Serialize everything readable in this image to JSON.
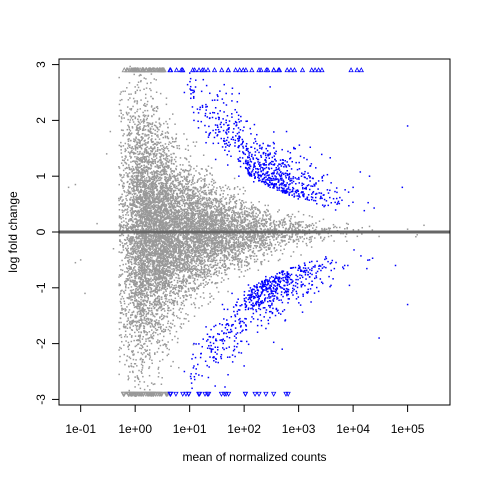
{
  "chart_data": {
    "type": "scatter",
    "title": "",
    "xlabel": "mean of normalized counts",
    "ylabel": "log fold change",
    "xscale": "log",
    "xlim": [
      0.04,
      600000
    ],
    "ylim": [
      -3.1,
      3.1
    ],
    "x_ticks": [
      {
        "value": 0.1,
        "label": "1e-01"
      },
      {
        "value": 1,
        "label": "1e+00"
      },
      {
        "value": 10,
        "label": "1e+01"
      },
      {
        "value": 100,
        "label": "1e+02"
      },
      {
        "value": 1000,
        "label": "1e+03"
      },
      {
        "value": 10000,
        "label": "1e+04"
      },
      {
        "value": 100000,
        "label": "1e+05"
      }
    ],
    "y_ticks": [
      {
        "value": -3,
        "label": "-3"
      },
      {
        "value": -2,
        "label": "-2"
      },
      {
        "value": -1,
        "label": "-1"
      },
      {
        "value": 0,
        "label": "0"
      },
      {
        "value": 1,
        "label": "1"
      },
      {
        "value": 2,
        "label": "2"
      },
      {
        "value": 3,
        "label": "3"
      }
    ],
    "reference_line": {
      "y": 0,
      "color": "#666666"
    },
    "grid": false,
    "legend": "none",
    "series": [
      {
        "color": "#999999",
        "marker": "point",
        "approx_count": 9000,
        "points": [
          [
            0.06,
            0.8
          ],
          [
            0.08,
            0.85
          ],
          [
            0.08,
            -0.55
          ],
          [
            0.1,
            -0.5
          ],
          [
            0.12,
            -1.1
          ],
          [
            0.2,
            0.15
          ],
          [
            0.3,
            1.4
          ],
          [
            0.35,
            1.8
          ],
          [
            0.4,
            -0.3
          ],
          [
            0.5,
            0.6
          ],
          [
            0.6,
            2.1
          ],
          [
            0.8,
            2.4
          ],
          [
            1,
            2.6
          ],
          [
            1.5,
            2.3
          ],
          [
            2,
            1.5
          ],
          [
            3,
            1.2
          ],
          [
            5,
            0.9
          ],
          [
            8,
            0.7
          ],
          [
            0.7,
            -2.3
          ],
          [
            1,
            -2.6
          ],
          [
            1.5,
            -2.0
          ],
          [
            2,
            -1.6
          ],
          [
            3,
            -1.3
          ],
          [
            5,
            -1.0
          ],
          [
            10,
            0.6
          ],
          [
            20,
            0.45
          ],
          [
            50,
            0.3
          ],
          [
            100,
            0.22
          ],
          [
            300,
            0.15
          ],
          [
            1000,
            0.1
          ],
          [
            5000,
            0.08
          ],
          [
            20000,
            0.1
          ],
          [
            100000,
            0.05
          ],
          [
            200000,
            0.12
          ],
          [
            10,
            -0.6
          ],
          [
            50,
            -0.35
          ],
          [
            300,
            -0.18
          ],
          [
            3000,
            -0.1
          ],
          [
            30000,
            -0.08
          ],
          [
            150000,
            -0.05
          ]
        ]
      },
      {
        "color": "#0000ff",
        "marker": "point",
        "approx_count": 1400,
        "points": [
          [
            8,
            2.5
          ],
          [
            12,
            2.0
          ],
          [
            20,
            1.6
          ],
          [
            30,
            1.3
          ],
          [
            50,
            1.2
          ],
          [
            80,
            1.0
          ],
          [
            150,
            0.9
          ],
          [
            300,
            0.8
          ],
          [
            600,
            0.7
          ],
          [
            1200,
            0.65
          ],
          [
            2500,
            0.6
          ],
          [
            5000,
            0.6
          ],
          [
            10000,
            0.8
          ],
          [
            20000,
            1.0
          ],
          [
            80000,
            0.8
          ],
          [
            100000,
            1.9
          ],
          [
            600,
            1.8
          ],
          [
            300,
            2.6
          ],
          [
            8,
            -2.5
          ],
          [
            12,
            -2.0
          ],
          [
            20,
            -1.7
          ],
          [
            40,
            -1.3
          ],
          [
            60,
            -1.1
          ],
          [
            120,
            -0.95
          ],
          [
            250,
            -0.8
          ],
          [
            500,
            -0.7
          ],
          [
            1000,
            -0.65
          ],
          [
            2000,
            -0.6
          ],
          [
            4000,
            -0.55
          ],
          [
            8000,
            -0.6
          ],
          [
            20000,
            -0.5
          ],
          [
            60000,
            -0.6
          ],
          [
            100000,
            -1.3
          ],
          [
            30000,
            -1.9
          ],
          [
            500,
            -2.1
          ],
          [
            100,
            -2.4
          ]
        ]
      },
      {
        "color": "#999999",
        "marker": "triangle-up",
        "y": 2.9,
        "x_range": [
          0.6,
          4
        ],
        "approx_count": 60
      },
      {
        "color": "#0000ff",
        "marker": "triangle-up",
        "y": 2.9,
        "x_range": [
          4,
          20000
        ],
        "approx_count": 40
      },
      {
        "color": "#999999",
        "marker": "triangle-down",
        "y": -2.9,
        "x_range": [
          0.6,
          4
        ],
        "approx_count": 60
      },
      {
        "color": "#0000ff",
        "marker": "triangle-down",
        "y": -2.9,
        "x_range": [
          4,
          800
        ],
        "approx_count": 25
      }
    ]
  }
}
